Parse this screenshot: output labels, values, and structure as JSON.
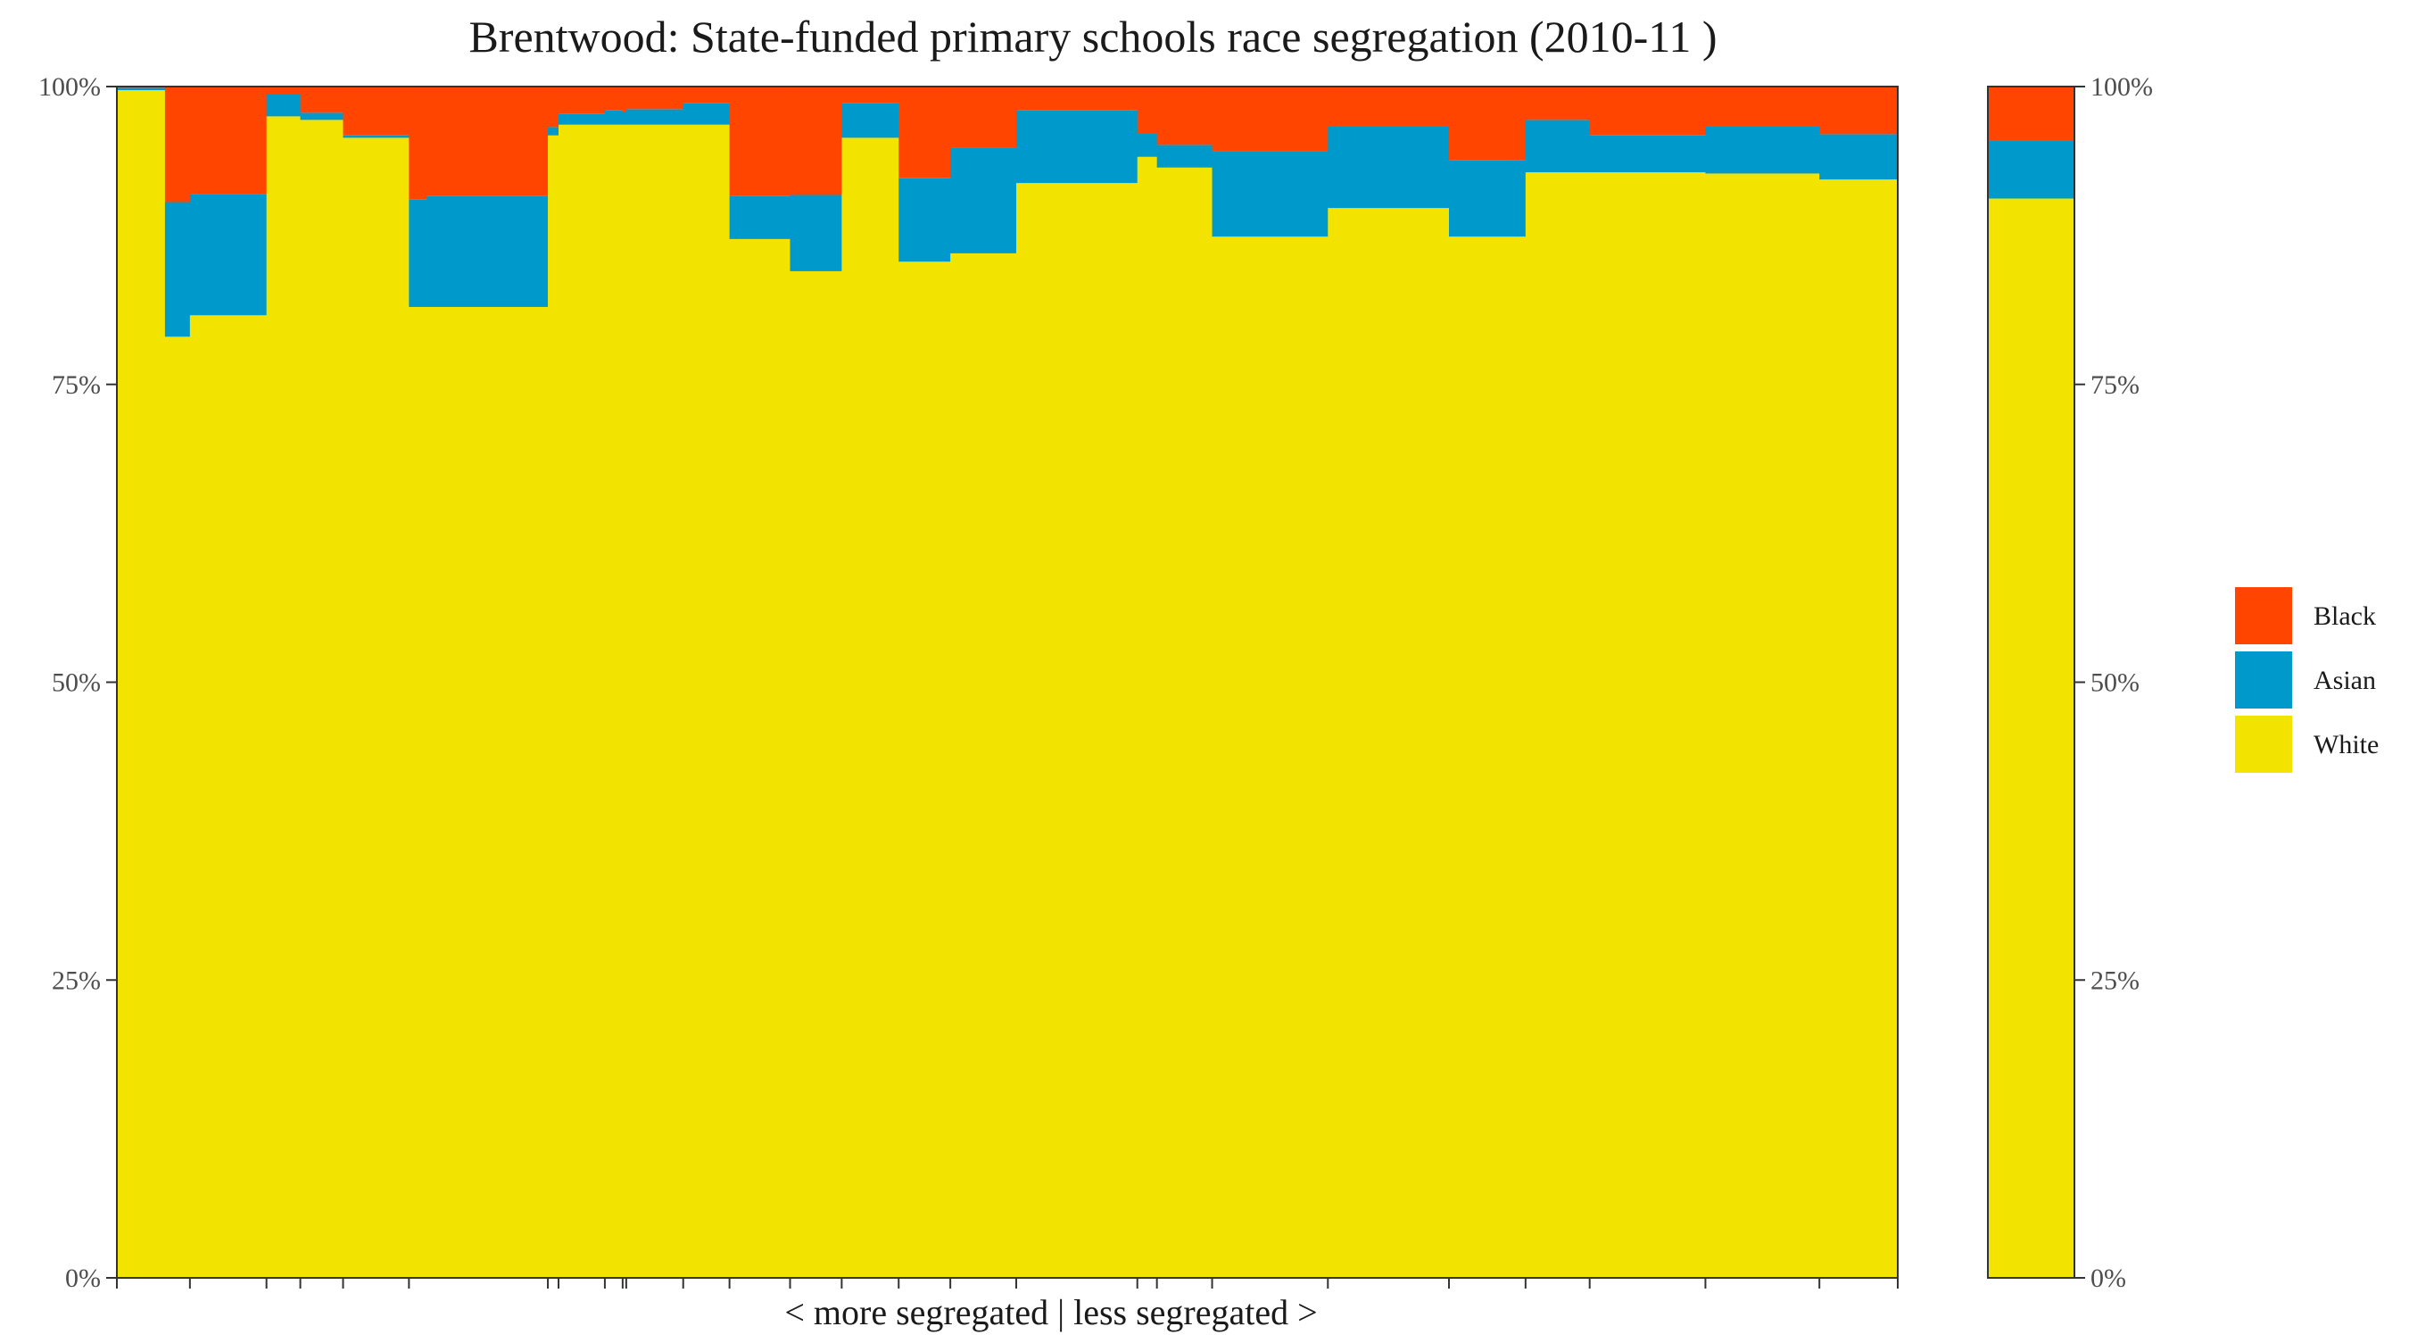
{
  "chart_data": {
    "type": "bar",
    "title": "Brentwood: State-funded primary schools race segregation (2010-11 )",
    "xlabel": "< more segregated | less segregated >",
    "ylabel": "",
    "ylim": [
      0,
      100
    ],
    "y_tick_labels": [
      "0%",
      "25%",
      "50%",
      "75%",
      "100%"
    ],
    "grid": false,
    "legend_position": "right",
    "legend": [
      {
        "name": "Black",
        "color": "#FF4500"
      },
      {
        "name": "Asian",
        "color": "#0099CC"
      },
      {
        "name": "White",
        "color": "#F2E400"
      }
    ],
    "colors": {
      "Black": "#FF4500",
      "Asian": "#0099CC",
      "White": "#F2E400"
    },
    "x_axis_range": [
      0,
      100
    ],
    "schools": [
      {
        "x0": 0.0,
        "x1": 2.7,
        "white": 99.7,
        "asian": 0.2,
        "black": 0.1
      },
      {
        "x0": 2.7,
        "x1": 4.1,
        "white": 79.0,
        "asian": 11.3,
        "black": 9.7
      },
      {
        "x0": 4.1,
        "x1": 8.4,
        "white": 80.8,
        "asian": 10.2,
        "black": 9.0
      },
      {
        "x0": 8.4,
        "x1": 10.3,
        "white": 97.5,
        "asian": 1.9,
        "black": 0.6
      },
      {
        "x0": 10.3,
        "x1": 12.7,
        "white": 97.2,
        "asian": 0.6,
        "black": 2.2
      },
      {
        "x0": 12.7,
        "x1": 16.4,
        "white": 95.7,
        "asian": 0.2,
        "black": 4.1
      },
      {
        "x0": 16.4,
        "x1": 17.4,
        "white": 81.5,
        "asian": 9.0,
        "black": 9.5
      },
      {
        "x0": 17.4,
        "x1": 24.2,
        "white": 81.5,
        "asian": 9.3,
        "black": 9.2
      },
      {
        "x0": 24.2,
        "x1": 24.8,
        "white": 95.9,
        "asian": 0.7,
        "black": 3.4
      },
      {
        "x0": 24.8,
        "x1": 27.4,
        "white": 96.8,
        "asian": 0.9,
        "black": 2.3
      },
      {
        "x0": 27.4,
        "x1": 28.4,
        "white": 96.8,
        "asian": 1.2,
        "black": 2.0
      },
      {
        "x0": 28.4,
        "x1": 28.6,
        "white": 96.8,
        "asian": 1.1,
        "black": 2.1
      },
      {
        "x0": 28.6,
        "x1": 31.8,
        "white": 96.8,
        "asian": 1.3,
        "black": 1.9
      },
      {
        "x0": 31.8,
        "x1": 34.4,
        "white": 96.8,
        "asian": 1.8,
        "black": 1.4
      },
      {
        "x0": 34.4,
        "x1": 37.8,
        "white": 87.2,
        "asian": 3.6,
        "black": 9.2
      },
      {
        "x0": 37.8,
        "x1": 40.7,
        "white": 84.5,
        "asian": 6.4,
        "black": 9.1
      },
      {
        "x0": 40.7,
        "x1": 43.9,
        "white": 95.7,
        "asian": 2.9,
        "black": 1.4
      },
      {
        "x0": 43.9,
        "x1": 46.8,
        "white": 85.3,
        "asian": 7.0,
        "black": 7.7
      },
      {
        "x0": 46.8,
        "x1": 50.5,
        "white": 86.0,
        "asian": 8.9,
        "black": 5.1
      },
      {
        "x0": 50.5,
        "x1": 57.3,
        "white": 91.9,
        "asian": 6.1,
        "black": 2.0
      },
      {
        "x0": 57.3,
        "x1": 58.4,
        "white": 94.1,
        "asian": 2.0,
        "black": 3.9
      },
      {
        "x0": 58.4,
        "x1": 61.5,
        "white": 93.2,
        "asian": 1.9,
        "black": 4.9
      },
      {
        "x0": 61.5,
        "x1": 68.0,
        "white": 87.4,
        "asian": 7.2,
        "black": 5.4
      },
      {
        "x0": 68.0,
        "x1": 74.8,
        "white": 89.8,
        "asian": 6.9,
        "black": 3.3
      },
      {
        "x0": 74.8,
        "x1": 79.1,
        "white": 87.4,
        "asian": 6.4,
        "black": 6.2
      },
      {
        "x0": 79.1,
        "x1": 82.7,
        "white": 92.8,
        "asian": 4.4,
        "black": 2.8
      },
      {
        "x0": 82.7,
        "x1": 89.2,
        "white": 92.8,
        "asian": 3.1,
        "black": 4.1
      },
      {
        "x0": 89.2,
        "x1": 95.6,
        "white": 92.7,
        "asian": 4.0,
        "black": 3.3
      },
      {
        "x0": 95.6,
        "x1": 100.0,
        "white": 92.2,
        "asian": 3.8,
        "black": 4.0
      }
    ],
    "x_ticks": [
      0,
      4.1,
      8.4,
      10.3,
      12.7,
      16.4,
      24.2,
      24.8,
      27.4,
      28.4,
      28.6,
      31.8,
      34.4,
      37.8,
      40.7,
      43.9,
      46.8,
      50.5,
      57.3,
      58.4,
      61.5,
      68.0,
      74.8,
      79.1,
      82.7,
      89.2,
      95.6,
      100.0
    ],
    "overall": {
      "white": 90.6,
      "asian": 4.9,
      "black": 4.5
    }
  }
}
